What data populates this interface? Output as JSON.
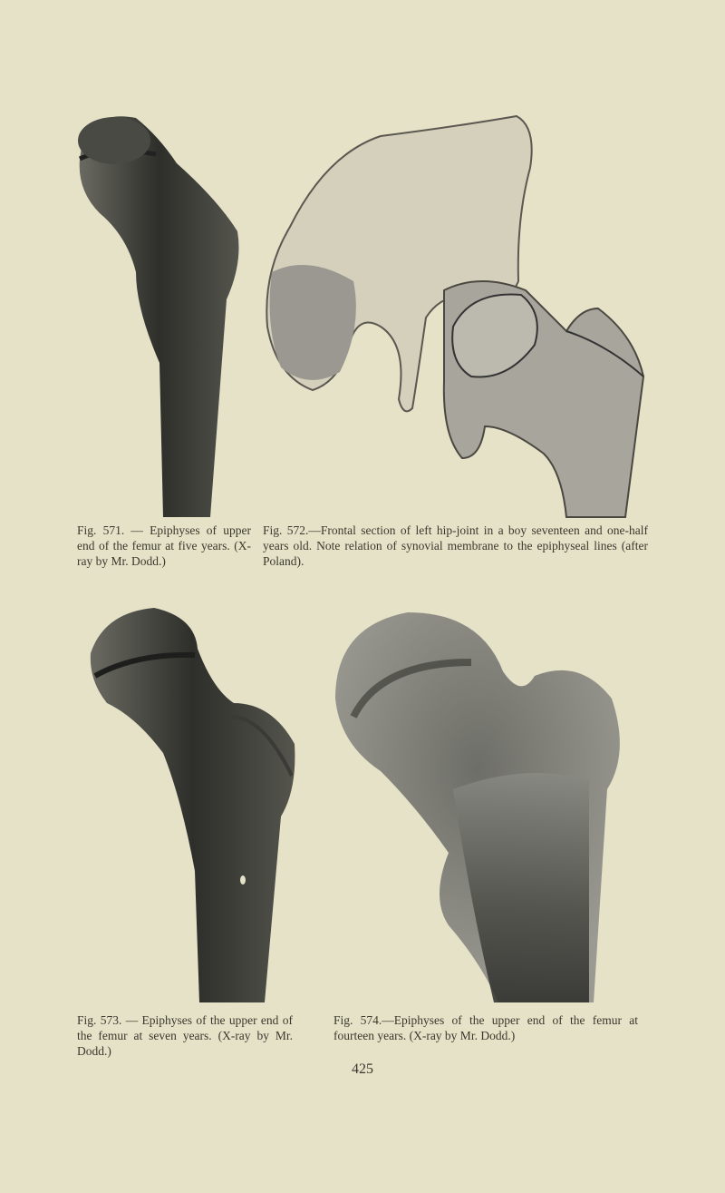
{
  "figures": [
    {
      "caption": "Fig. 571. — Epiphyses of upper end of the femur at five years. (X-ray by Mr. Dodd.)"
    },
    {
      "caption": "Fig. 572.—Frontal section of left hip-joint in a boy seventeen and one-half years old. Note relation of synovial membrane to the epiphyseal lines (after Poland)."
    },
    {
      "caption": "Fig. 573. — Epiphyses of the upper end of the femur at seven years. (X-ray by Mr. Dodd.)"
    },
    {
      "caption": "Fig. 574.—Epiphyses of the upper end of the femur at fourteen years. (X-ray by Mr. Dodd.)"
    }
  ],
  "page_number": "425"
}
